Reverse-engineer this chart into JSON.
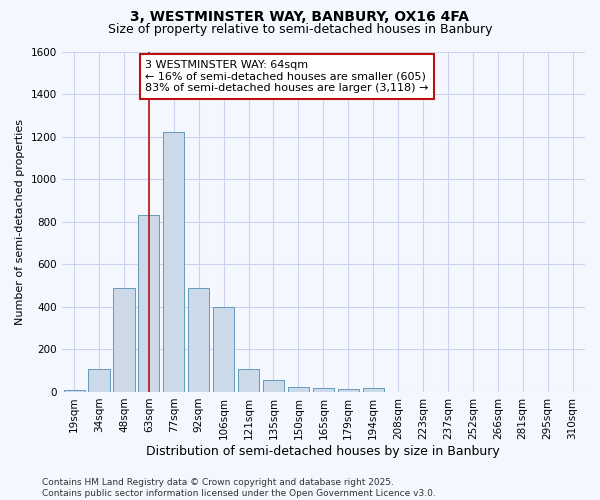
{
  "title1": "3, WESTMINSTER WAY, BANBURY, OX16 4FA",
  "title2": "Size of property relative to semi-detached houses in Banbury",
  "xlabel": "Distribution of semi-detached houses by size in Banbury",
  "ylabel": "Number of semi-detached properties",
  "bin_labels": [
    "19sqm",
    "34sqm",
    "48sqm",
    "63sqm",
    "77sqm",
    "92sqm",
    "106sqm",
    "121sqm",
    "135sqm",
    "150sqm",
    "165sqm",
    "179sqm",
    "194sqm",
    "208sqm",
    "223sqm",
    "237sqm",
    "252sqm",
    "266sqm",
    "281sqm",
    "295sqm",
    "310sqm"
  ],
  "bar_values": [
    10,
    110,
    490,
    830,
    1220,
    490,
    400,
    110,
    55,
    25,
    20,
    15,
    20,
    0,
    0,
    0,
    0,
    0,
    0,
    0,
    0
  ],
  "bar_color": "#ccd9e8",
  "bar_edge_color": "#6699bb",
  "property_bin_index": 3,
  "vline_color": "#bb1111",
  "annotation_line1": "3 WESTMINSTER WAY: 64sqm",
  "annotation_line2": "← 16% of semi-detached houses are smaller (605)",
  "annotation_line3": "83% of semi-detached houses are larger (3,118) →",
  "annotation_box_color": "#ffffff",
  "annotation_box_edge_color": "#bb1111",
  "footer_text": "Contains HM Land Registry data © Crown copyright and database right 2025.\nContains public sector information licensed under the Open Government Licence v3.0.",
  "ylim": [
    0,
    1600
  ],
  "yticks": [
    0,
    200,
    400,
    600,
    800,
    1000,
    1200,
    1400,
    1600
  ],
  "background_color": "#f5f7ff",
  "grid_color": "#c8d4f0",
  "title1_fontsize": 10,
  "title2_fontsize": 9,
  "xlabel_fontsize": 9,
  "ylabel_fontsize": 8,
  "tick_fontsize": 7.5,
  "annotation_fontsize": 8,
  "footer_fontsize": 6.5
}
